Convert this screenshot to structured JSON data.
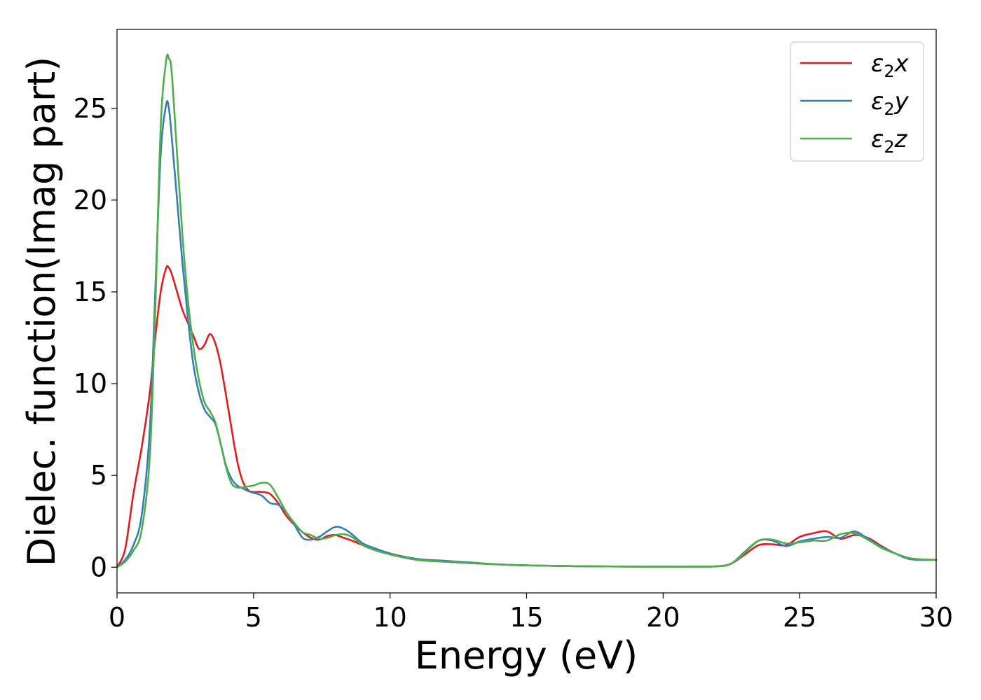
{
  "chart_data": {
    "type": "line",
    "title": "",
    "xlabel": "Energy (eV)",
    "ylabel": "Dielec. function(Imag part)",
    "xlim": [
      0,
      30
    ],
    "ylim": [
      -1.4,
      29.3
    ],
    "xticks": [
      0,
      5,
      10,
      15,
      20,
      25,
      30
    ],
    "xtick_labels": [
      "0",
      "5",
      "10",
      "15",
      "20",
      "25",
      "30"
    ],
    "yticks": [
      0,
      5,
      10,
      15,
      20,
      25
    ],
    "ytick_labels": [
      "0",
      "5",
      "10",
      "15",
      "20",
      "25"
    ],
    "grid": false,
    "legend_position": "top-right",
    "x": [
      0,
      0.3,
      0.6,
      0.9,
      1.2,
      1.4,
      1.6,
      1.8,
      1.9,
      2.0,
      2.2,
      2.4,
      2.6,
      2.8,
      3.0,
      3.2,
      3.4,
      3.6,
      3.8,
      4.0,
      4.2,
      4.4,
      4.6,
      4.8,
      5.0,
      5.3,
      5.6,
      5.9,
      6.2,
      6.5,
      6.8,
      7.1,
      7.4,
      7.7,
      8.0,
      8.3,
      8.6,
      9.0,
      9.5,
      10.0,
      11.0,
      12.0,
      13.0,
      14.0,
      15.0,
      17.0,
      19.0,
      21.0,
      22.0,
      22.5,
      23.0,
      23.5,
      24.0,
      24.5,
      25.0,
      25.5,
      26.0,
      26.5,
      27.0,
      27.5,
      28.0,
      28.5,
      29.0,
      29.5,
      30.0
    ],
    "series": [
      {
        "name": "ε₂x",
        "name_main": "ε",
        "name_sub": "2",
        "name_tail": "x",
        "color": "#e41a1c",
        "values": [
          0,
          1.0,
          4.0,
          6.5,
          9.5,
          12.5,
          15.0,
          16.3,
          16.3,
          16.0,
          15.0,
          14.0,
          13.3,
          12.6,
          11.9,
          12.1,
          12.7,
          12.2,
          11.0,
          9.3,
          7.5,
          5.8,
          4.7,
          4.2,
          4.1,
          4.1,
          4.0,
          3.5,
          2.8,
          2.3,
          1.9,
          1.6,
          1.5,
          1.7,
          1.75,
          1.6,
          1.45,
          1.2,
          0.95,
          0.7,
          0.4,
          0.3,
          0.22,
          0.15,
          0.1,
          0.05,
          0.03,
          0.03,
          0.05,
          0.2,
          0.7,
          1.2,
          1.25,
          1.2,
          1.65,
          1.85,
          1.95,
          1.55,
          1.75,
          1.6,
          1.15,
          0.75,
          0.5,
          0.42,
          0.4
        ]
      },
      {
        "name": "ε₂y",
        "name_main": "ε",
        "name_sub": "2",
        "name_tail": "y",
        "color": "#377eb8",
        "values": [
          0,
          0.4,
          1.2,
          2.8,
          7.5,
          15.0,
          22.5,
          25.2,
          25.0,
          23.5,
          20.0,
          16.5,
          13.5,
          11.0,
          9.5,
          8.6,
          8.2,
          7.8,
          6.7,
          5.5,
          4.8,
          4.45,
          4.3,
          4.15,
          4.05,
          3.9,
          3.5,
          3.4,
          3.0,
          2.3,
          1.6,
          1.5,
          1.65,
          1.95,
          2.2,
          2.1,
          1.8,
          1.3,
          1.0,
          0.75,
          0.45,
          0.35,
          0.25,
          0.15,
          0.1,
          0.05,
          0.03,
          0.03,
          0.05,
          0.2,
          0.85,
          1.45,
          1.45,
          1.15,
          1.4,
          1.55,
          1.65,
          1.6,
          1.95,
          1.55,
          1.1,
          0.75,
          0.45,
          0.4,
          0.4
        ]
      },
      {
        "name": "ε₂z",
        "name_main": "ε",
        "name_sub": "2",
        "name_tail": "z",
        "color": "#4daf4a",
        "values": [
          0,
          0.3,
          0.9,
          2.0,
          6.0,
          14.0,
          24.0,
          27.6,
          27.7,
          27.0,
          22.5,
          18.0,
          14.5,
          12.0,
          10.2,
          9.0,
          8.5,
          7.9,
          6.7,
          5.4,
          4.55,
          4.35,
          4.35,
          4.4,
          4.45,
          4.6,
          4.5,
          3.8,
          3.0,
          2.4,
          1.9,
          1.75,
          1.55,
          1.6,
          1.75,
          1.8,
          1.65,
          1.2,
          0.9,
          0.7,
          0.4,
          0.3,
          0.22,
          0.15,
          0.1,
          0.05,
          0.03,
          0.03,
          0.05,
          0.2,
          0.8,
          1.45,
          1.5,
          1.3,
          1.35,
          1.45,
          1.45,
          1.8,
          1.85,
          1.5,
          1.05,
          0.75,
          0.5,
          0.42,
          0.4
        ]
      }
    ]
  }
}
